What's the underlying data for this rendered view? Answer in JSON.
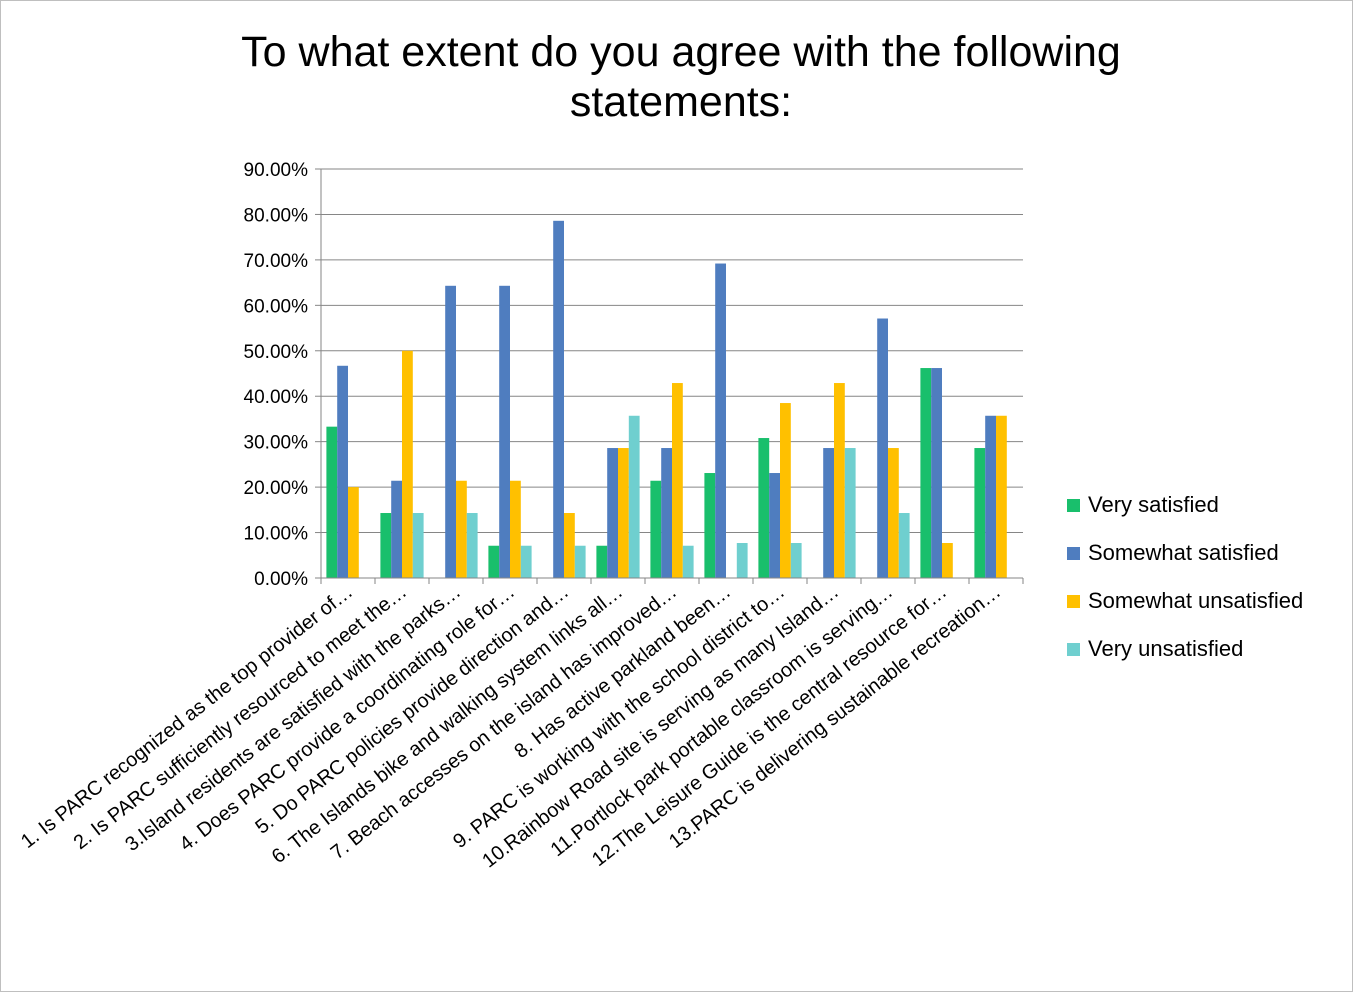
{
  "chart_data": {
    "type": "bar",
    "title_lines": [
      "To what extent do you agree with the following",
      "statements:"
    ],
    "xlabel": "",
    "ylabel": "",
    "ylim": [
      0,
      0.9
    ],
    "y_ticks": [
      0,
      0.1,
      0.2,
      0.3,
      0.4,
      0.5,
      0.6,
      0.7,
      0.8,
      0.9
    ],
    "y_tick_labels": [
      "0.00%",
      "10.00%",
      "20.00%",
      "30.00%",
      "40.00%",
      "50.00%",
      "60.00%",
      "70.00%",
      "80.00%",
      "90.00%"
    ],
    "grid": true,
    "legend_position": "right",
    "categories": [
      "1. Is PARC recognized as the top provider of…",
      "2. Is PARC sufficiently resourced to meet the…",
      "3.Island residents are satisfied with the parks…",
      "4. Does PARC provide a coordinating role for…",
      "5. Do PARC policies provide direction and…",
      "6. The Islands bike and walking system links all…",
      "7. Beach accesses on the island has improved…",
      "8.              Has active parkland been…",
      "9. PARC is working with the school district to…",
      "10.Rainbow Road site is serving as many Island…",
      "11.Portlock park portable classroom is serving…",
      "12.The Leisure Guide is the central resource for…",
      "13.PARC is delivering sustainable recreation…"
    ],
    "series": [
      {
        "name": "Very satisfied",
        "color": "#19bf6c",
        "values": [
          0.333,
          0.143,
          0,
          0.071,
          0,
          0.071,
          0.214,
          0.231,
          0.308,
          0,
          0,
          0.462,
          0.286
        ]
      },
      {
        "name": "Somewhat satisfied",
        "color": "#4f7dbf",
        "values": [
          0.467,
          0.214,
          0.643,
          0.643,
          0.786,
          0.286,
          0.286,
          0.692,
          0.231,
          0.286,
          0.571,
          0.462,
          0.357
        ]
      },
      {
        "name": "Somewhat unsatisfied",
        "color": "#ffc000",
        "values": [
          0.2,
          0.5,
          0.214,
          0.214,
          0.143,
          0.286,
          0.429,
          0,
          0.385,
          0.429,
          0.286,
          0.077,
          0.357
        ]
      },
      {
        "name": "Very unsatisfied",
        "color": "#6fcfcf",
        "values": [
          0,
          0.143,
          0.143,
          0.071,
          0.071,
          0.357,
          0.071,
          0.077,
          0.077,
          0.286,
          0.143,
          0,
          0
        ]
      }
    ]
  }
}
